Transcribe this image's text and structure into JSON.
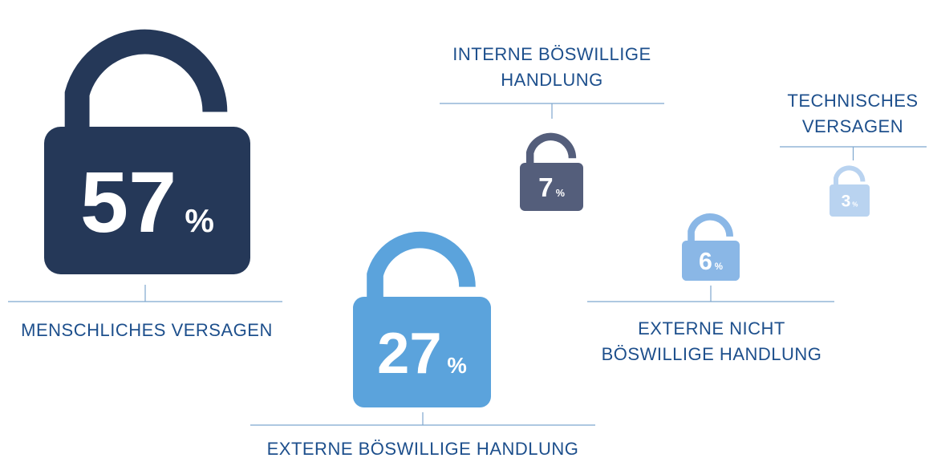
{
  "chart_data": {
    "type": "pictograph",
    "categories": [
      "MENSCHLICHES VERSAGEN",
      "EXTERNE BÖSWILLIGE HANDLUNG",
      "INTERNE BÖSWILLIGE HANDLUNG",
      "EXTERNE NICHT BÖSWILLIGE HANDLUNG",
      "TECHNISCHES VERSAGEN"
    ],
    "values": [
      57,
      27,
      7,
      6,
      3
    ],
    "unit": "%",
    "colors": [
      "#253858",
      "#5ba3dc",
      "#545e7b",
      "#8ab7e6",
      "#b9d3f0"
    ]
  }
}
